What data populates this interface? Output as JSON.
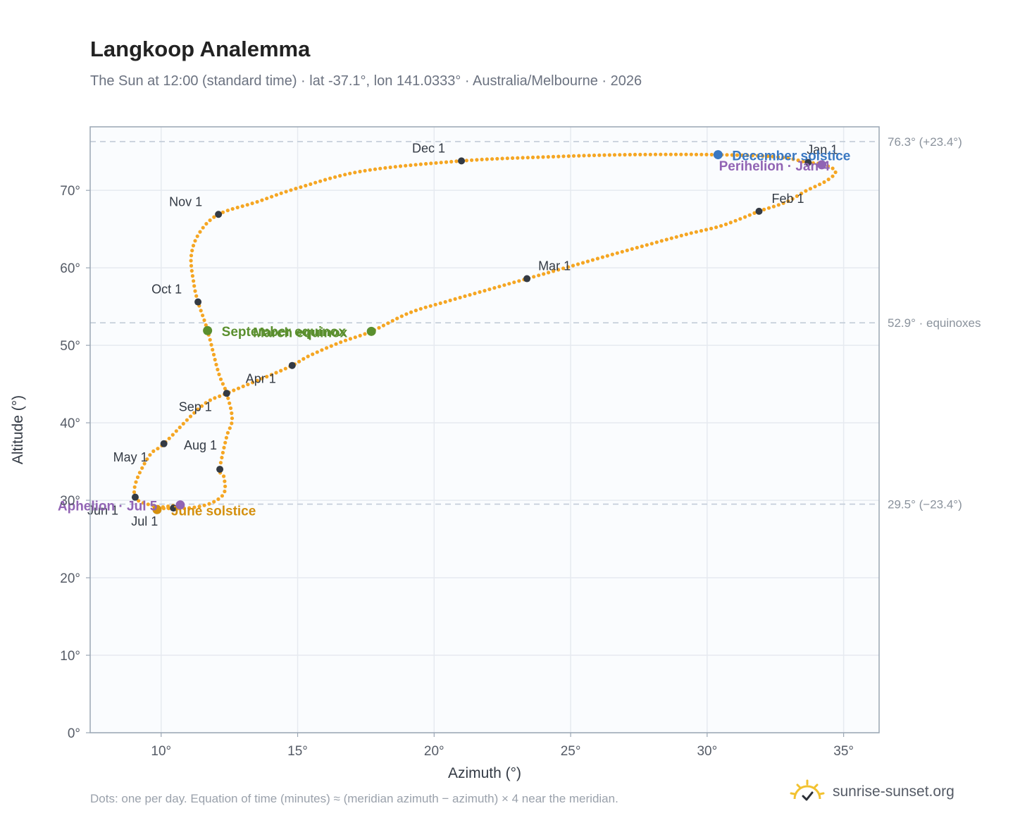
{
  "header": {
    "title": "Langkoop Analemma",
    "subtitle": "The Sun at 12:00 (standard time) · lat -37.1°, lon 141.0333° · Australia/Melbourne · 2026"
  },
  "footer": {
    "note": "Dots: one per day. Equation of time (minutes) ≈ (meridian azimuth − azimuth) × 4 near the meridian.",
    "brand": "sunrise-sunset.org"
  },
  "colors": {
    "curve": "#f5a623",
    "month_marker": "#333a44",
    "solstice_june": "#d4900f",
    "solstice_december": "#3a78c2",
    "equinox": "#5a8f2e",
    "apsis": "#9164b4",
    "grid": "#e6eaf0",
    "reference_line": "#c2ccd8",
    "plot_bg": "#fafcfe",
    "axis_border": "#9aa6b4"
  },
  "chart_data": {
    "type": "scatter",
    "xlabel": "Azimuth (°)",
    "ylabel": "Altitude (°)",
    "xlim": [
      7.4,
      36.3
    ],
    "ylim": [
      0,
      78.2
    ],
    "x_ticks": [
      10,
      15,
      20,
      25,
      30,
      35
    ],
    "x_tick_labels": [
      "10°",
      "15°",
      "20°",
      "25°",
      "30°",
      "35°"
    ],
    "y_ticks": [
      0,
      10,
      20,
      30,
      40,
      50,
      60,
      70
    ],
    "y_tick_labels": [
      "0°",
      "10°",
      "20°",
      "30°",
      "40°",
      "50°",
      "60°",
      "70°"
    ],
    "grid": true,
    "reference_lines": [
      {
        "y": 76.3,
        "label": "76.3° (+23.4°)"
      },
      {
        "y": 52.9,
        "label": "52.9° · equinoxes"
      },
      {
        "y": 29.5,
        "label": "29.5° (−23.4°)"
      }
    ],
    "series": [
      {
        "points": [
          [
            33.7,
            73.6
          ],
          [
            34.2,
            73.4
          ],
          [
            34.7,
            72.5
          ],
          [
            34.4,
            71.3
          ],
          [
            33.6,
            69.9
          ],
          [
            32.9,
            68.5
          ],
          [
            31.9,
            67.3
          ],
          [
            31.2,
            66.3
          ],
          [
            30.4,
            65.3
          ],
          [
            29.1,
            64.2
          ],
          [
            26.5,
            61.7
          ],
          [
            25.4,
            60.6
          ],
          [
            23.4,
            58.6
          ],
          [
            22.3,
            57.5
          ],
          [
            20.5,
            55.7
          ],
          [
            19.1,
            54.2
          ],
          [
            17.7,
            51.8
          ],
          [
            16.5,
            50.3
          ],
          [
            15.4,
            48.6
          ],
          [
            14.8,
            47.4
          ],
          [
            13.9,
            46.0
          ],
          [
            12.4,
            43.8
          ],
          [
            11.5,
            42.2
          ],
          [
            10.1,
            37.3
          ],
          [
            9.6,
            35.9
          ],
          [
            9.1,
            32.6
          ],
          [
            9.05,
            30.4
          ],
          [
            9.5,
            29.5
          ],
          [
            10.3,
            29.0
          ],
          [
            10.7,
            29.4
          ],
          [
            9.9,
            29.0
          ],
          [
            11.0,
            29.0
          ],
          [
            11.8,
            29.6
          ],
          [
            12.3,
            30.9
          ],
          [
            12.3,
            33.0
          ],
          [
            12.15,
            34.0
          ],
          [
            12.4,
            38.2
          ],
          [
            12.6,
            40.5
          ],
          [
            12.4,
            43.8
          ],
          [
            12.1,
            46.5
          ],
          [
            11.7,
            51.9
          ],
          [
            11.35,
            55.6
          ],
          [
            11.2,
            57.9
          ],
          [
            11.1,
            61.5
          ],
          [
            11.4,
            64.5
          ],
          [
            12.1,
            66.9
          ],
          [
            13.5,
            68.5
          ],
          [
            15.0,
            70.3
          ],
          [
            17.4,
            72.5
          ],
          [
            21.0,
            73.8
          ],
          [
            24.0,
            74.3
          ],
          [
            27.0,
            74.6
          ],
          [
            30.4,
            74.6
          ],
          [
            32.6,
            74.3
          ],
          [
            33.7,
            73.6
          ]
        ]
      }
    ],
    "month_markers": [
      {
        "label": "Jan 1",
        "x": 33.7,
        "y": 73.6
      },
      {
        "label": "Feb 1",
        "x": 31.9,
        "y": 67.3
      },
      {
        "label": "Mar 1",
        "x": 23.4,
        "y": 58.6
      },
      {
        "label": "Apr 1",
        "x": 14.8,
        "y": 47.4
      },
      {
        "label": "May 1",
        "x": 10.1,
        "y": 37.3
      },
      {
        "label": "Jun 1",
        "x": 9.05,
        "y": 30.4
      },
      {
        "label": "Jul 1",
        "x": 10.45,
        "y": 29.0
      },
      {
        "label": "Aug 1",
        "x": 12.15,
        "y": 34.0
      },
      {
        "label": "Sep 1",
        "x": 12.4,
        "y": 43.8
      },
      {
        "label": "Oct 1",
        "x": 11.35,
        "y": 55.6
      },
      {
        "label": "Nov 1",
        "x": 12.1,
        "y": 66.9
      },
      {
        "label": "Dec 1",
        "x": 21.0,
        "y": 73.8
      }
    ],
    "events": [
      {
        "label": "December solstice",
        "x": 30.4,
        "y": 74.6,
        "kind": "solstice_december"
      },
      {
        "label": "Perihelion · Jan 4",
        "x": 34.2,
        "y": 73.3,
        "kind": "apsis"
      },
      {
        "label": "March equinox",
        "x": 17.7,
        "y": 51.8,
        "kind": "equinox"
      },
      {
        "label": "September equinox",
        "x": 11.7,
        "y": 51.9,
        "kind": "equinox"
      },
      {
        "label": "June solstice",
        "x": 9.85,
        "y": 28.8,
        "kind": "solstice_june"
      },
      {
        "label": "Aphelion · Jul 5",
        "x": 10.7,
        "y": 29.4,
        "kind": "apsis"
      }
    ]
  }
}
